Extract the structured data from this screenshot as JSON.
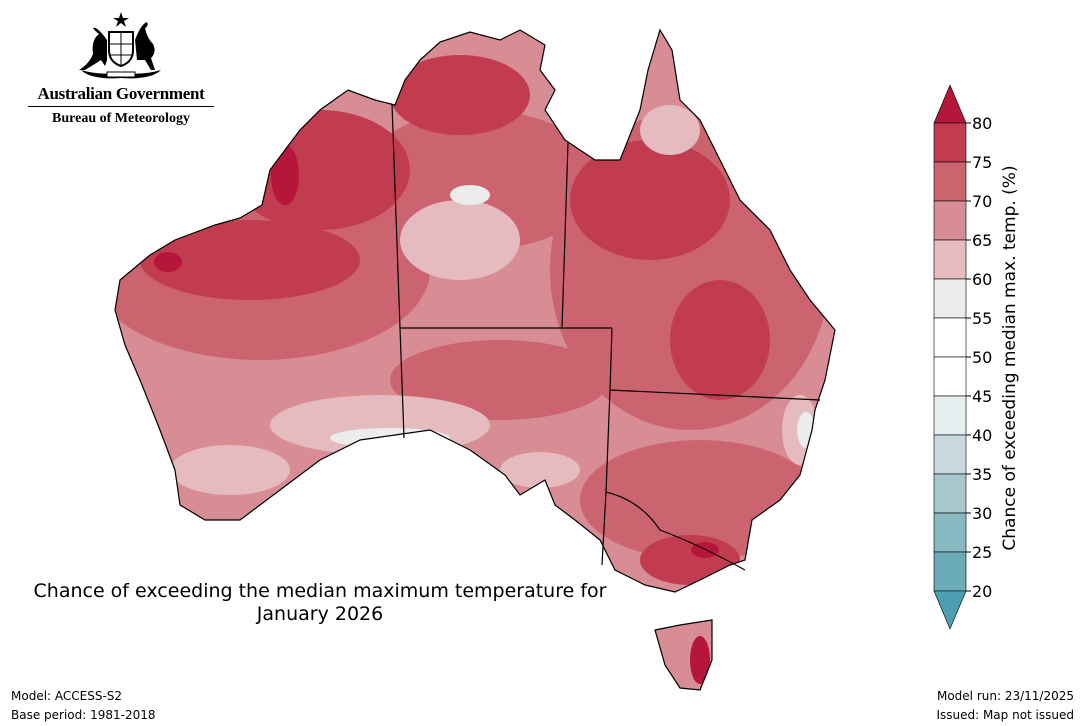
{
  "branding": {
    "government": "Australian Government",
    "agency": "Bureau of Meteorology",
    "crest_icon": "coat-of-arms-icon"
  },
  "map": {
    "title_line1": "Chance of exceeding the median maximum temperature for",
    "title_line2": "January 2026",
    "region": "Australia"
  },
  "legend": {
    "label": "Chance of exceeding median max. temp. (%)",
    "ticks": [
      "80",
      "75",
      "70",
      "65",
      "60",
      "55",
      "50",
      "45",
      "40",
      "35",
      "30",
      "25",
      "20"
    ],
    "colors": {
      "over80": "#b5163a",
      "75-80": "#c23c50",
      "70-75": "#cc6470",
      "65-70": "#d88c94",
      "60-65": "#e5bbbf",
      "55-60": "#ececec",
      "50-55": "#ffffff",
      "45-50": "#ffffff",
      "40-45": "#e6eef0",
      "35-40": "#c8dadd",
      "30-35": "#a6c8cd",
      "25-30": "#88b8c0",
      "20-25": "#6cacb8",
      "under20": "#4c9fb0"
    }
  },
  "footer": {
    "model": "Model: ACCESS-S2",
    "base_period": "Base period: 1981-2018",
    "model_run": "Model run: 23/11/2025",
    "issued": "Issued: Map not issued"
  }
}
